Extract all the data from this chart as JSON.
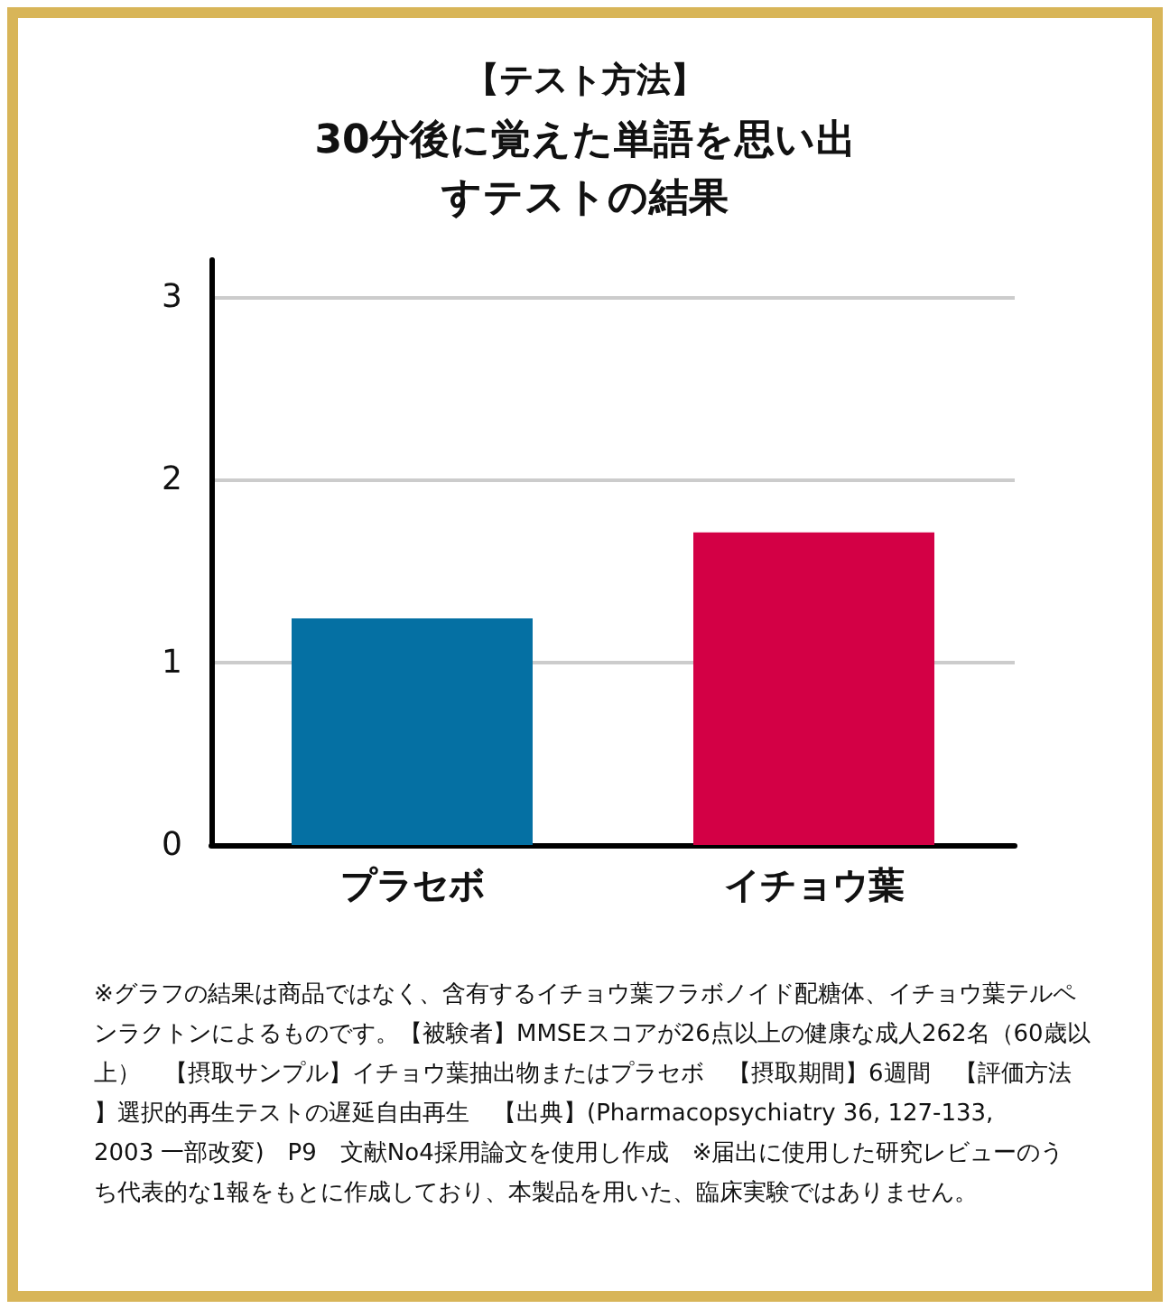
{
  "chart_data": {
    "type": "bar",
    "title": "【テスト方法】",
    "subtitle": "30分後に覚えた単語を思い出すテストの結果",
    "categories": [
      "プラセボ",
      "イチョウ葉"
    ],
    "values": [
      1.24,
      1.71
    ],
    "colors": [
      "#0570a3",
      "#d30045"
    ],
    "ylim": [
      0,
      3.2
    ],
    "yticks": [
      0,
      1,
      2,
      3
    ],
    "grid": "y",
    "annotations": [
      "※グラフの結果は商品ではなく、含有するイチョウ葉フラボノイド配糖体、イチョウ葉テルペンラクトンによるものです。【被験者】MMSEスコアが26点以上の健康な成人262名（60歳以上）　【摂取サンプル】イチョウ葉抽出物またはプラセボ　【摂取期間】6週間　【評価方法】選択的再生テストの遅延自由再生　【出典】(Pharmacopsychiatry 36, 127-133, 2003 一部改変)　P9　文献No4採用論文を使用し作成　※届出に使用した研究レビューのうち代表的な1報をもとに作成しており、本製品を用いた、臨床実験ではありません。"
    ]
  }
}
